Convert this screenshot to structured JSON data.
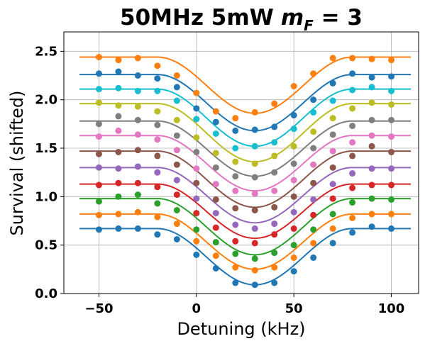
{
  "chart_data": {
    "type": "scatter",
    "title": "50MHz 5mW",
    "title_math": {
      "base": "m",
      "sub": "F",
      "rest": " = 3"
    },
    "xlabel": "Detuning (kHz)",
    "ylabel": "Survival (shifted)",
    "xlim": [
      -68,
      114
    ],
    "ylim": [
      0.0,
      2.7
    ],
    "xticks": [
      -50,
      0,
      50,
      100
    ],
    "yticks": [
      0.0,
      0.5,
      1.0,
      1.5,
      2.0,
      2.5
    ],
    "xtick_labels": [
      "−50",
      "0",
      "50",
      "100"
    ],
    "ytick_labels": [
      "0.0",
      "0.5",
      "1.0",
      "1.5",
      "2.0",
      "2.5"
    ],
    "grid": true,
    "x": [
      -50,
      -40,
      -30,
      -20,
      -10,
      0,
      10,
      20,
      30,
      40,
      50,
      60,
      70,
      80,
      90,
      100
    ],
    "fit_x_range": [
      -60,
      110
    ],
    "fit_center": 30,
    "series": [
      {
        "color": "#1f77b4",
        "values": [
          0.66,
          0.67,
          0.67,
          0.61,
          0.56,
          0.4,
          0.26,
          0.11,
          0.09,
          0.11,
          0.23,
          0.37,
          0.52,
          0.63,
          0.69,
          0.67
        ],
        "fit": {
          "baseline": 0.67,
          "depth": 0.58
        }
      },
      {
        "color": "#ff7f0e",
        "values": [
          0.81,
          0.82,
          0.84,
          0.79,
          0.72,
          0.54,
          0.39,
          0.27,
          0.24,
          0.27,
          0.37,
          0.52,
          0.67,
          0.78,
          0.82,
          0.82
        ],
        "fit": {
          "baseline": 0.82,
          "depth": 0.57
        }
      },
      {
        "color": "#2ca02c",
        "values": [
          0.95,
          1.0,
          1.02,
          0.93,
          0.86,
          0.66,
          0.53,
          0.41,
          0.36,
          0.42,
          0.5,
          0.66,
          0.82,
          0.94,
          0.98,
          0.97
        ],
        "fit": {
          "baseline": 0.98,
          "depth": 0.58
        }
      },
      {
        "color": "#d62728",
        "values": [
          1.12,
          1.14,
          1.14,
          1.1,
          1.02,
          0.83,
          0.68,
          0.54,
          0.52,
          0.61,
          0.67,
          0.81,
          0.98,
          1.09,
          1.12,
          1.12
        ],
        "fit": {
          "baseline": 1.13,
          "depth": 0.56
        }
      },
      {
        "color": "#9467bd",
        "values": [
          1.3,
          1.29,
          1.31,
          1.25,
          1.17,
          0.98,
          0.83,
          0.71,
          0.67,
          0.72,
          0.84,
          0.97,
          1.13,
          1.24,
          1.29,
          1.29
        ],
        "fit": {
          "baseline": 1.3,
          "depth": 0.57
        }
      },
      {
        "color": "#8c564b",
        "values": [
          1.44,
          1.46,
          1.48,
          1.42,
          1.33,
          1.14,
          0.97,
          0.88,
          0.86,
          0.89,
          1.0,
          1.14,
          1.3,
          1.42,
          1.52,
          1.46
        ],
        "fit": {
          "baseline": 1.47,
          "depth": 0.58
        }
      },
      {
        "color": "#e377c2",
        "values": [
          1.62,
          1.68,
          1.64,
          1.59,
          1.48,
          1.29,
          1.13,
          1.06,
          1.03,
          1.06,
          1.17,
          1.33,
          1.47,
          1.56,
          1.63,
          1.62
        ],
        "fit": {
          "baseline": 1.63,
          "depth": 0.57
        }
      },
      {
        "color": "#7f7f7f",
        "values": [
          1.75,
          1.83,
          1.79,
          1.74,
          1.63,
          1.46,
          1.3,
          1.21,
          1.2,
          1.25,
          1.34,
          1.5,
          1.64,
          1.73,
          1.79,
          1.79
        ],
        "fit": {
          "baseline": 1.78,
          "depth": 0.57
        }
      },
      {
        "color": "#bcbd22",
        "values": [
          1.97,
          1.94,
          1.93,
          1.88,
          1.79,
          1.61,
          1.45,
          1.36,
          1.34,
          1.42,
          1.52,
          1.67,
          1.81,
          1.91,
          1.97,
          1.95
        ],
        "fit": {
          "baseline": 1.96,
          "depth": 0.6
        }
      },
      {
        "color": "#17becf",
        "values": [
          2.11,
          2.12,
          2.09,
          2.09,
          1.99,
          1.8,
          1.65,
          1.5,
          1.52,
          1.56,
          1.7,
          1.87,
          1.99,
          2.1,
          2.13,
          2.09
        ],
        "fit": {
          "baseline": 2.11,
          "depth": 0.59
        }
      },
      {
        "color": "#1f77b4",
        "values": [
          2.27,
          2.29,
          2.25,
          2.22,
          2.13,
          1.91,
          1.77,
          1.68,
          1.69,
          1.72,
          1.84,
          2.0,
          2.17,
          2.27,
          2.23,
          2.24
        ],
        "fit": {
          "baseline": 2.26,
          "depth": 0.58
        }
      },
      {
        "color": "#ff7f0e",
        "values": [
          2.44,
          2.41,
          2.43,
          2.35,
          2.25,
          2.07,
          1.88,
          1.81,
          1.87,
          1.96,
          2.14,
          2.27,
          2.43,
          2.43,
          2.42,
          2.41
        ],
        "fit": {
          "baseline": 2.44,
          "depth": 0.58
        }
      }
    ]
  }
}
